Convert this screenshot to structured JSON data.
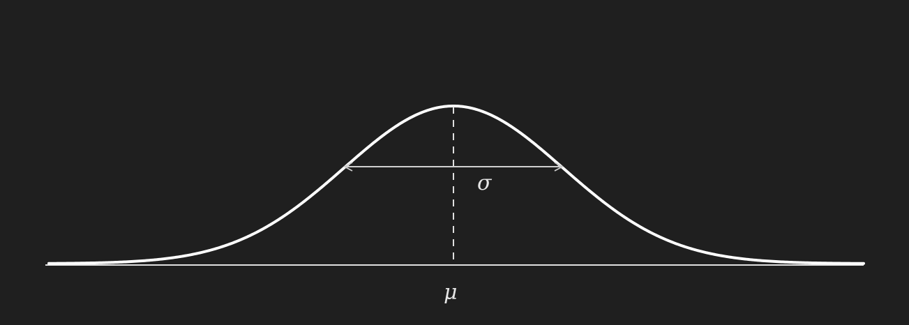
{
  "diagram": {
    "type": "normal-distribution",
    "mean_symbol": "μ",
    "spread_symbol": "σ",
    "colors": {
      "background": "#1f1f1f",
      "curve": "#ffffff",
      "axis": "#e0e0e0",
      "mean_line": "#e0e0e0",
      "arrow": "#cfcfcf",
      "labels": "#e6e6e6"
    }
  }
}
